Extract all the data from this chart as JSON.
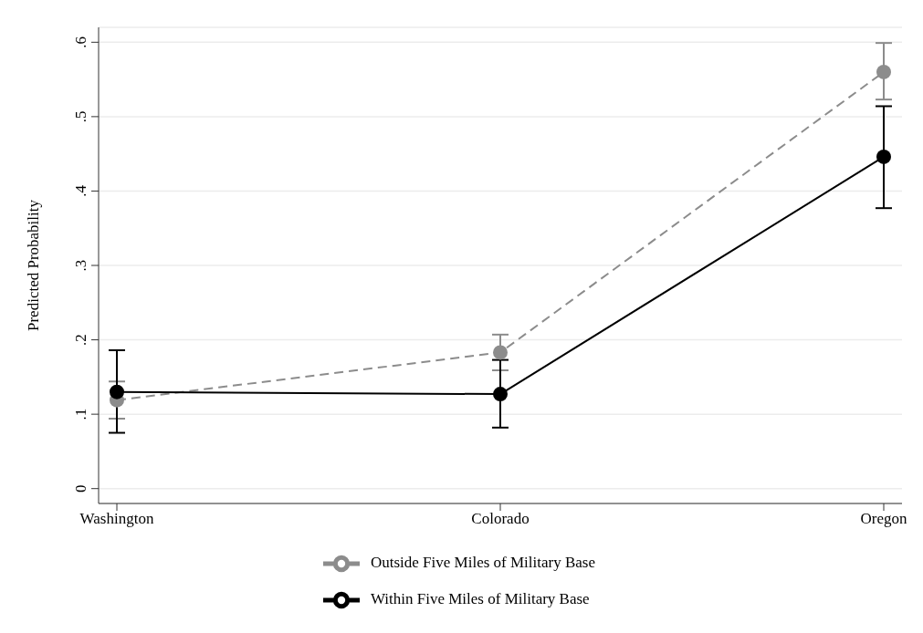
{
  "chart_data": {
    "type": "line",
    "ylabel": "Predicted Probability",
    "categories": [
      "Washington",
      "Colorado",
      "Oregon"
    ],
    "series": [
      {
        "name": "Outside Five Miles of Military Base",
        "color": "#8c8c8c",
        "values": [
          0.119,
          0.183,
          0.56
        ],
        "errors": [
          [
            0.094,
            0.144
          ],
          [
            0.159,
            0.207
          ],
          [
            0.523,
            0.599
          ]
        ],
        "line_style": "dashed"
      },
      {
        "name": "Within Five Miles of Military Base",
        "color": "#000000",
        "values": [
          0.13,
          0.127,
          0.446
        ],
        "errors": [
          [
            0.075,
            0.186
          ],
          [
            0.082,
            0.173
          ],
          [
            0.377,
            0.514
          ]
        ],
        "line_style": "solid"
      }
    ],
    "ylim": [
      -0.02,
      0.62
    ],
    "yticks": [
      0,
      {
        "value": 0.1,
        "label": ".1"
      },
      {
        "value": 0.2,
        "label": ".2"
      },
      {
        "value": 0.3,
        "label": ".3"
      },
      {
        "value": 0.4,
        "label": ".4"
      },
      {
        "value": 0.5,
        "label": ".5"
      },
      {
        "value": 0.6,
        "label": ".6"
      }
    ],
    "grid": "y",
    "marker": "circle",
    "legend": "bottom"
  }
}
